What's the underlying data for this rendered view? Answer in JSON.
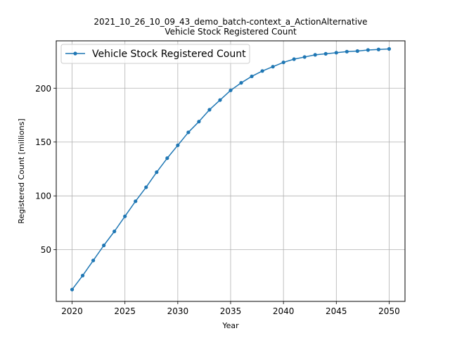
{
  "chart_data": {
    "type": "line",
    "title": "2021_10_26_10_09_43_demo_batch-context_a_ActionAlternative",
    "subtitle": "Vehicle Stock Registered Count",
    "xlabel": "Year",
    "ylabel": "Registered Count [millions]",
    "xlim": [
      2018.5,
      2051.5
    ],
    "ylim": [
      2,
      244
    ],
    "xticks": [
      2020,
      2025,
      2030,
      2035,
      2040,
      2045,
      2050
    ],
    "yticks": [
      50,
      100,
      150,
      200
    ],
    "grid": true,
    "legend_position": "top-left",
    "series": [
      {
        "name": "Vehicle Stock Registered Count",
        "color": "#1f77b4",
        "marker": "circle",
        "x": [
          2020,
          2021,
          2022,
          2023,
          2024,
          2025,
          2026,
          2027,
          2028,
          2029,
          2030,
          2031,
          2032,
          2033,
          2034,
          2035,
          2036,
          2037,
          2038,
          2039,
          2040,
          2041,
          2042,
          2043,
          2044,
          2045,
          2046,
          2047,
          2048,
          2049,
          2050
        ],
        "y": [
          13,
          26,
          40,
          54,
          67,
          81,
          95,
          108,
          122,
          135,
          147,
          159,
          169,
          180,
          189,
          198,
          205,
          211,
          216,
          220,
          224,
          227,
          229,
          231,
          232,
          233,
          234,
          234.5,
          235.5,
          236,
          236.5
        ]
      }
    ]
  }
}
